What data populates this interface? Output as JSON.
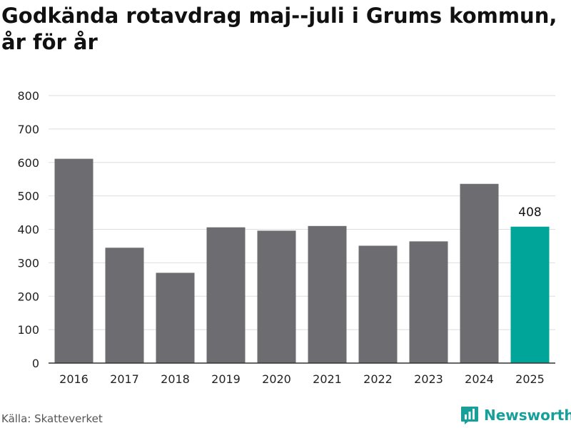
{
  "title": "Godkända rotavdrag maj--juli i Grums kommun, år för år",
  "source": "Källa: Skatteverket",
  "brand": {
    "name": "Newsworthy",
    "icon": "newsworthy-logo-icon",
    "color": "#17a09a"
  },
  "colors": {
    "bar": "#6d6c71",
    "highlight": "#00a59a",
    "grid": "#dddddd",
    "axis": "#333333"
  },
  "chart_data": {
    "type": "bar",
    "title": "Godkända rotavdrag maj--juli i Grums kommun, år för år",
    "xlabel": "",
    "ylabel": "",
    "categories": [
      "2016",
      "2017",
      "2018",
      "2019",
      "2020",
      "2021",
      "2022",
      "2023",
      "2024",
      "2025"
    ],
    "values": [
      611,
      345,
      270,
      406,
      396,
      410,
      351,
      364,
      536,
      408
    ],
    "highlight_index": 9,
    "data_labels": [
      {
        "index": 9,
        "text": "408"
      }
    ],
    "ylim": [
      0,
      800
    ],
    "yticks": [
      0,
      100,
      200,
      300,
      400,
      500,
      600,
      700,
      800
    ],
    "grid": true,
    "legend": "none"
  }
}
